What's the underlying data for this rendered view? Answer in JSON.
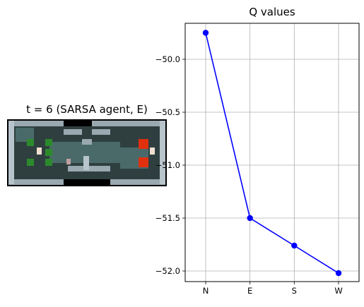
{
  "left_panel": {
    "title": "t = 6 (SARSA agent, E)",
    "image": "grid-world dungeon frame with agent, green goals and red lava"
  },
  "chart_data": {
    "type": "line",
    "title": "Q values",
    "xlabel": "",
    "ylabel": "",
    "categories": [
      "N",
      "E",
      "S",
      "W"
    ],
    "series": [
      {
        "values": [
          -49.75,
          -51.5,
          -51.76,
          -52.02
        ],
        "color": "#0000ff",
        "marker": "circle"
      }
    ],
    "yticks": [
      -50.0,
      -50.5,
      -51.0,
      -51.5,
      -52.0
    ],
    "ytick_labels": [
      "−50.0",
      "−50.5",
      "−51.0",
      "−51.5",
      "−52.0"
    ],
    "ylim": [
      -52.1,
      -49.66
    ],
    "grid": true
  }
}
